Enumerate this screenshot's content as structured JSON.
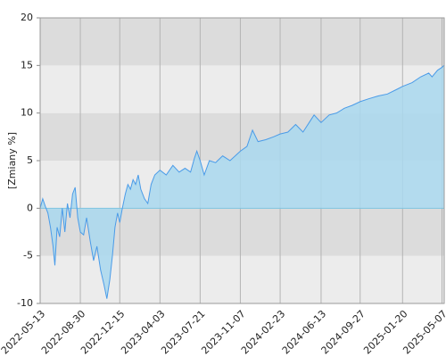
{
  "chart_data": {
    "type": "area",
    "y_label": "[Zmiany %]",
    "ylim": [
      -10,
      20
    ],
    "yticks": [
      -10,
      -5,
      0,
      5,
      10,
      15,
      20
    ],
    "xlim": [
      "2022-05-13",
      "2025-05-13"
    ],
    "xticks": [
      "2022-05-13",
      "2022-08-30",
      "2022-12-15",
      "2023-04-03",
      "2023-07-21",
      "2023-11-07",
      "2024-02-23",
      "2024-06-13",
      "2024-09-27",
      "2025-01-20",
      "2025-05-07"
    ],
    "grid": true,
    "band_colors": [
      "#ececec",
      "#dcdcdc"
    ],
    "line_color": "#4a9be8",
    "fill_color": "#a9d8ee",
    "x": [
      "2022-05-13",
      "2022-05-20",
      "2022-05-27",
      "2022-06-03",
      "2022-06-10",
      "2022-06-17",
      "2022-06-22",
      "2022-06-28",
      "2022-07-05",
      "2022-07-12",
      "2022-07-19",
      "2022-07-26",
      "2022-08-02",
      "2022-08-09",
      "2022-08-16",
      "2022-08-23",
      "2022-08-30",
      "2022-09-08",
      "2022-09-16",
      "2022-09-26",
      "2022-10-05",
      "2022-10-14",
      "2022-10-24",
      "2022-11-02",
      "2022-11-10",
      "2022-11-18",
      "2022-11-25",
      "2022-12-02",
      "2022-12-09",
      "2022-12-15",
      "2022-12-22",
      "2022-12-30",
      "2023-01-06",
      "2023-01-13",
      "2023-01-20",
      "2023-01-27",
      "2023-02-03",
      "2023-02-10",
      "2023-02-20",
      "2023-03-01",
      "2023-03-10",
      "2023-03-20",
      "2023-04-03",
      "2023-04-20",
      "2023-05-08",
      "2023-05-25",
      "2023-06-10",
      "2023-06-25",
      "2023-07-05",
      "2023-07-12",
      "2023-07-21",
      "2023-08-01",
      "2023-08-15",
      "2023-09-01",
      "2023-09-20",
      "2023-10-10",
      "2023-11-07",
      "2023-11-25",
      "2023-12-10",
      "2023-12-25",
      "2024-01-15",
      "2024-02-05",
      "2024-02-23",
      "2024-03-15",
      "2024-04-05",
      "2024-04-25",
      "2024-05-15",
      "2024-05-25",
      "2024-06-13",
      "2024-07-05",
      "2024-07-25",
      "2024-08-15",
      "2024-09-05",
      "2024-09-27",
      "2024-10-20",
      "2024-11-15",
      "2024-12-10",
      "2025-01-05",
      "2025-01-20",
      "2025-02-15",
      "2025-03-10",
      "2025-04-01",
      "2025-04-10",
      "2025-04-25",
      "2025-05-07",
      "2025-05-12"
    ],
    "values": [
      0,
      1.0,
      0.2,
      -0.5,
      -2,
      -4,
      -6,
      -2,
      -3,
      0,
      -2.5,
      0.5,
      -1,
      1.5,
      2.2,
      -1,
      -2.5,
      -2.8,
      -1,
      -3.5,
      -5.5,
      -4,
      -6.5,
      -8,
      -9.5,
      -7.5,
      -5,
      -2,
      -0.5,
      -1.5,
      0,
      1.5,
      2.5,
      2,
      3,
      2.5,
      3.5,
      2,
      1,
      0.5,
      2.5,
      3.5,
      4,
      3.5,
      4.5,
      3.8,
      4.2,
      3.8,
      5.2,
      6,
      5,
      3.5,
      5,
      4.8,
      5.5,
      5,
      6,
      6.5,
      8.2,
      7,
      7.2,
      7.5,
      7.8,
      8,
      8.8,
      8,
      9.2,
      9.8,
      9,
      9.8,
      10,
      10.5,
      10.8,
      11.2,
      11.5,
      11.8,
      12,
      12.5,
      12.8,
      13.2,
      13.8,
      14.2,
      13.8,
      14.5,
      14.8,
      15
    ]
  }
}
